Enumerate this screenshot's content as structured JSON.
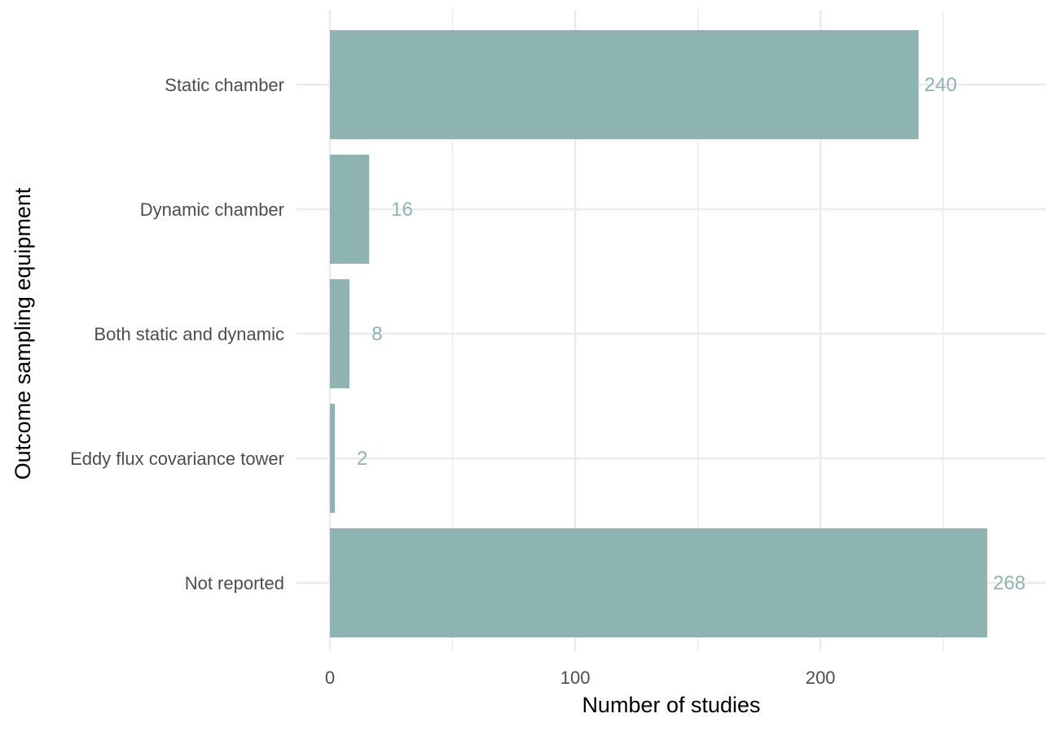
{
  "chart_data": {
    "type": "bar",
    "orientation": "horizontal",
    "categories": [
      "Static chamber",
      "Dynamic chamber",
      "Both static and dynamic",
      "Eddy flux covariance tower",
      "Not reported"
    ],
    "values": [
      240,
      16,
      8,
      2,
      268
    ],
    "data_labels": [
      "240",
      "16",
      "8",
      "2",
      "268"
    ],
    "xlabel": "Number of studies",
    "ylabel": "Outcome sampling equipment",
    "x_ticks": [
      0,
      100,
      200
    ],
    "x_tick_labels": [
      "0",
      "100",
      "200"
    ],
    "xlim": [
      0,
      292
    ],
    "grid": true,
    "legend": "none",
    "bar_color": "#8db4b0",
    "grid_color": "#ebebeb"
  }
}
